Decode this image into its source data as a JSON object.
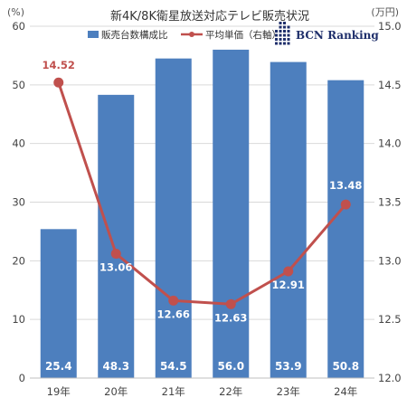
{
  "chart_data": {
    "type": "bar",
    "title": "新4K/8K衛星放送対応テレビ販売状況",
    "left_unit": "(%)",
    "right_unit": "(万円)",
    "categories": [
      "19年",
      "20年",
      "21年",
      "22年",
      "23年",
      "24年"
    ],
    "series": [
      {
        "name": "販売台数構成比",
        "type": "bar",
        "axis": "left",
        "values": [
          25.4,
          48.3,
          54.5,
          56.0,
          53.9,
          50.8
        ],
        "labels": [
          "25.4",
          "48.3",
          "54.5",
          "56.0",
          "53.9",
          "50.8"
        ]
      },
      {
        "name": "平均単価（右軸）",
        "type": "line",
        "axis": "right",
        "values": [
          14.52,
          13.06,
          12.66,
          12.63,
          12.91,
          13.48
        ],
        "labels": [
          "14.52",
          "13.06",
          "12.66",
          "12.63",
          "12.91",
          "13.48"
        ]
      }
    ],
    "y_left": {
      "min": 0,
      "max": 60,
      "ticks": [
        "0",
        "10",
        "20",
        "30",
        "40",
        "50",
        "60"
      ]
    },
    "y_right": {
      "min": 12.0,
      "max": 15.0,
      "ticks": [
        "12.0",
        "12.5",
        "13.0",
        "13.5",
        "14.0",
        "14.5",
        "15.0"
      ]
    },
    "colors": {
      "bar": "#4d7fbe",
      "line": "#c0504d",
      "line_label_first": "#c0504d",
      "line_label": "#ffffff",
      "grid": "#d9d9d9"
    },
    "grid": true,
    "legend": "top"
  },
  "logo": {
    "text": "BCN Ranking",
    "color": "#1f2f6b"
  }
}
